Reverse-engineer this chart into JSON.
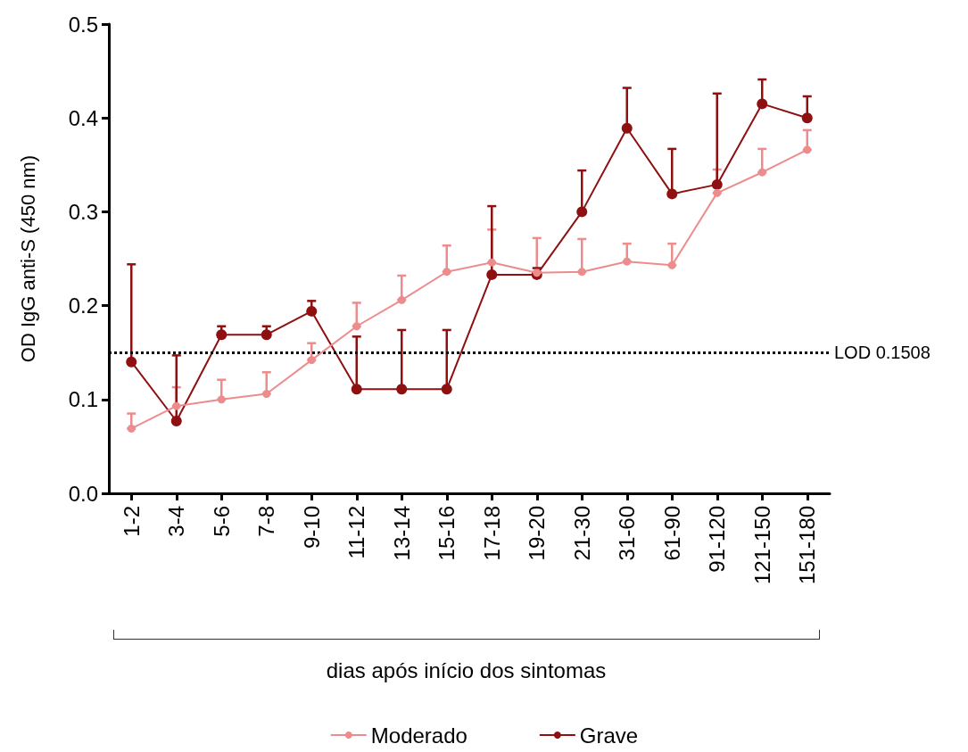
{
  "chart_data": {
    "type": "line",
    "xlabel": "dias após início dos sintomas",
    "ylabel": "OD IgG anti-S (450 nm)",
    "categories": [
      "1-2",
      "3-4",
      "5-6",
      "7-8",
      "9-10",
      "11-12",
      "13-14",
      "15-16",
      "17-18",
      "19-20",
      "21-30",
      "31-60",
      "61-90",
      "91-120",
      "121-150",
      "151-180"
    ],
    "series": [
      {
        "name": "Moderado",
        "color": "#ec8c8c",
        "values": [
          0.069,
          0.093,
          0.1,
          0.106,
          0.142,
          0.178,
          0.206,
          0.236,
          0.246,
          0.235,
          0.236,
          0.247,
          0.243,
          0.32,
          0.342,
          0.366
        ],
        "errors": [
          [
            0.069,
            0.085
          ],
          [
            0.093,
            0.113
          ],
          [
            0.1,
            0.121
          ],
          [
            0.106,
            0.129
          ],
          [
            0.142,
            0.16
          ],
          [
            0.178,
            0.203
          ],
          [
            0.206,
            0.232
          ],
          [
            0.236,
            0.264
          ],
          [
            0.246,
            0.281
          ],
          [
            0.235,
            0.272
          ],
          [
            0.236,
            0.271
          ],
          [
            0.247,
            0.266
          ],
          [
            0.243,
            0.266
          ],
          [
            0.32,
            0.345
          ],
          [
            0.342,
            0.367
          ],
          [
            0.366,
            0.387
          ]
        ]
      },
      {
        "name": "Grave",
        "color": "#8e1010",
        "values": [
          0.14,
          0.077,
          0.169,
          0.169,
          0.194,
          0.111,
          0.111,
          0.111,
          0.233,
          0.233,
          0.3,
          0.389,
          0.319,
          0.329,
          0.415,
          0.4
        ],
        "errors": [
          [
            0.14,
            0.244
          ],
          [
            0.077,
            0.147
          ],
          [
            0.169,
            0.178
          ],
          [
            0.169,
            0.178
          ],
          [
            0.194,
            0.205
          ],
          [
            0.111,
            0.167
          ],
          [
            0.111,
            0.174
          ],
          [
            0.111,
            0.174
          ],
          [
            0.233,
            0.306
          ],
          [
            0.233,
            0.24
          ],
          [
            0.3,
            0.344
          ],
          [
            0.389,
            0.432
          ],
          [
            0.319,
            0.367
          ],
          [
            0.329,
            0.426
          ],
          [
            0.415,
            0.441
          ],
          [
            0.4,
            0.423
          ]
        ]
      }
    ],
    "ylim": [
      0,
      0.5
    ],
    "yticks": [
      {
        "value": 0,
        "label": "0.0"
      },
      0.1,
      0.2,
      0.3,
      0.4,
      0.5
    ],
    "ref_lines": [
      {
        "axis": "y",
        "value": 0.1508,
        "label": "LOD 0.1508",
        "color": "#000000",
        "line_style": "dotted"
      }
    ],
    "grid": false,
    "legend": "bottom",
    "marker": "circle",
    "line_style": "solid"
  }
}
